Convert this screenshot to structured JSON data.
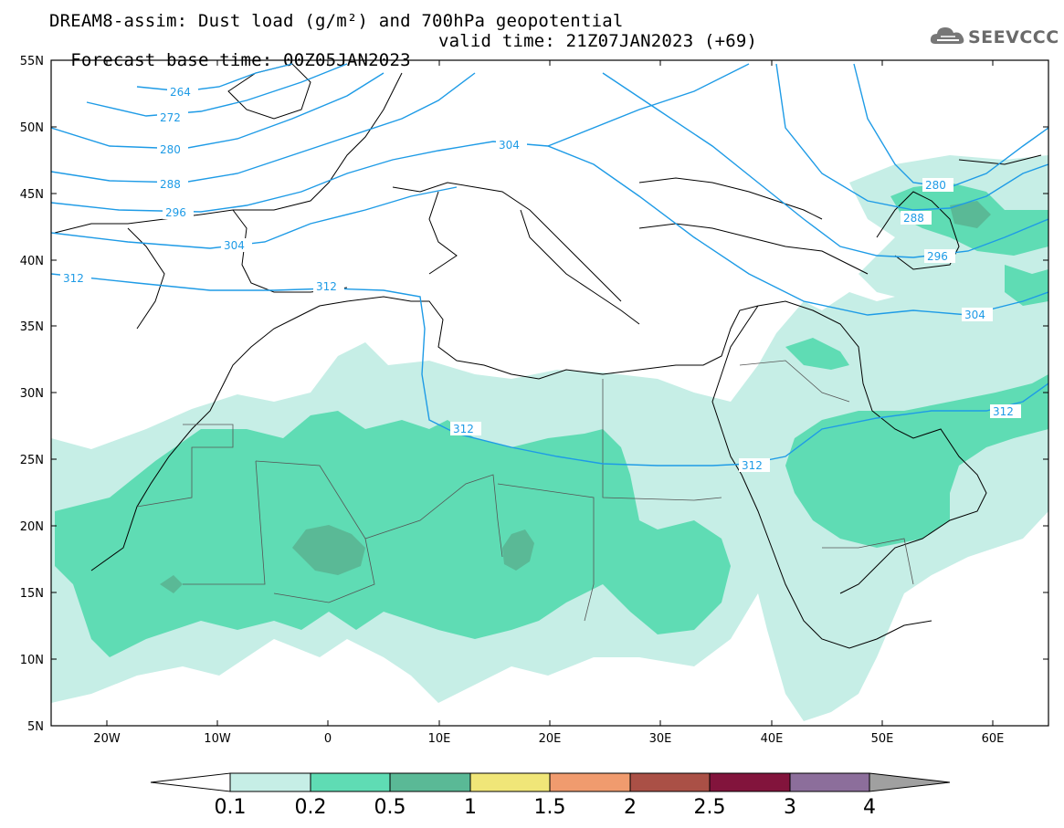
{
  "header": {
    "line1": "DREAM8-assim: Dust load (g/m²) and 700hPa geopotential",
    "base_time": "Forecast base time: 00Z05JAN2023",
    "valid_time": "valid time: 21Z07JAN2023 (+69)"
  },
  "logo": {
    "text": "SEEVCCC",
    "icon": "cloud-icon"
  },
  "map": {
    "lat_labels": [
      "55N",
      "50N",
      "45N",
      "40N",
      "35N",
      "30N",
      "25N",
      "20N",
      "15N",
      "10N",
      "5N"
    ],
    "lon_labels": [
      "20W",
      "10W",
      "0",
      "10E",
      "20E",
      "30E",
      "40E",
      "50E",
      "60E"
    ],
    "contour_labels": [
      "264",
      "272",
      "280",
      "288",
      "296",
      "304",
      "312",
      "312",
      "304",
      "312",
      "312",
      "312",
      "280",
      "288",
      "296",
      "304"
    ]
  },
  "colorbar": {
    "labels": [
      "0.1",
      "0.2",
      "0.5",
      "1",
      "1.5",
      "2",
      "2.5",
      "3",
      "4"
    ],
    "colors": [
      "#c6eee6",
      "#5fdcb4",
      "#5ab996",
      "#f0e678",
      "#f09b6e",
      "#aa5046",
      "#82143c",
      "#8c6e9b"
    ],
    "under_color": "#ffffff",
    "over_color": "#a0a0a0"
  },
  "colors": {
    "contour": "#1e9be6",
    "coast": "#000000",
    "frame": "#000000"
  }
}
